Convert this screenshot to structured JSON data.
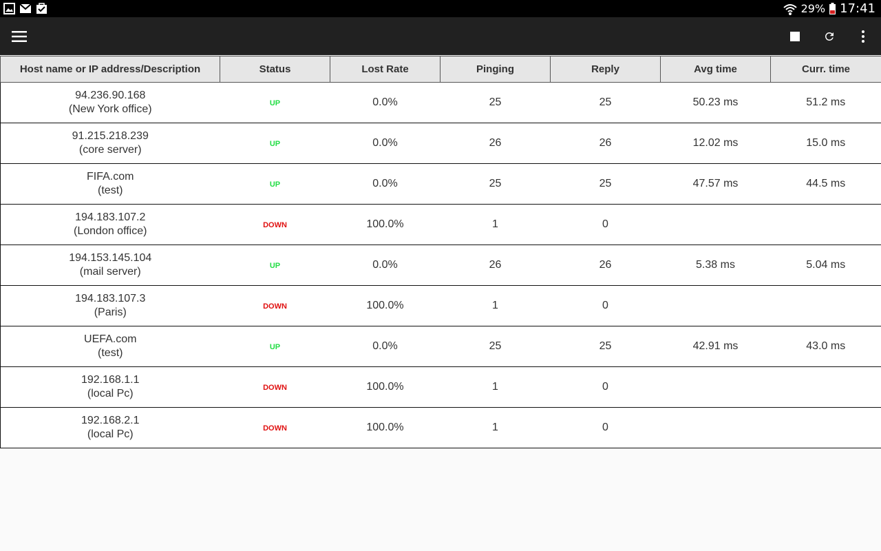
{
  "status_bar": {
    "battery": "29%",
    "time": "17:41",
    "icons": [
      "image-icon",
      "gmail-icon",
      "task-icon",
      "wifi-icon",
      "battery-icon"
    ]
  },
  "toolbar": {
    "icons": [
      "menu-icon",
      "stop-icon",
      "refresh-icon",
      "more-vert-icon"
    ]
  },
  "colors": {
    "up": "#22dd44",
    "down": "#e01010",
    "toolbar_bg": "#212121",
    "header_bg": "#e6e6e6"
  },
  "table": {
    "columns": [
      "Host name or IP address/Description",
      "Status",
      "Lost Rate",
      "Pinging",
      "Reply",
      "Avg time",
      "Curr. time"
    ],
    "rows": [
      {
        "host": "94.236.90.168",
        "desc": "(New York office)",
        "status": "UP",
        "lost": "0.0%",
        "pinging": "25",
        "reply": "25",
        "avg": "50.23 ms",
        "curr": "51.2 ms"
      },
      {
        "host": "91.215.218.239",
        "desc": "(core server)",
        "status": "UP",
        "lost": "0.0%",
        "pinging": "26",
        "reply": "26",
        "avg": "12.02 ms",
        "curr": "15.0 ms"
      },
      {
        "host": "FIFA.com",
        "desc": "(test)",
        "status": "UP",
        "lost": "0.0%",
        "pinging": "25",
        "reply": "25",
        "avg": "47.57 ms",
        "curr": "44.5 ms"
      },
      {
        "host": "194.183.107.2",
        "desc": "(London office)",
        "status": "DOWN",
        "lost": "100.0%",
        "pinging": "1",
        "reply": "0",
        "avg": "",
        "curr": ""
      },
      {
        "host": "194.153.145.104",
        "desc": "(mail server)",
        "status": "UP",
        "lost": "0.0%",
        "pinging": "26",
        "reply": "26",
        "avg": "5.38 ms",
        "curr": "5.04 ms"
      },
      {
        "host": "194.183.107.3",
        "desc": "(Paris)",
        "status": "DOWN",
        "lost": "100.0%",
        "pinging": "1",
        "reply": "0",
        "avg": "",
        "curr": ""
      },
      {
        "host": "UEFA.com",
        "desc": "(test)",
        "status": "UP",
        "lost": "0.0%",
        "pinging": "25",
        "reply": "25",
        "avg": "42.91 ms",
        "curr": "43.0 ms"
      },
      {
        "host": "192.168.1.1",
        "desc": "(local Pc)",
        "status": "DOWN",
        "lost": "100.0%",
        "pinging": "1",
        "reply": "0",
        "avg": "",
        "curr": ""
      },
      {
        "host": "192.168.2.1",
        "desc": "(local Pc)",
        "status": "DOWN",
        "lost": "100.0%",
        "pinging": "1",
        "reply": "0",
        "avg": "",
        "curr": ""
      }
    ]
  }
}
